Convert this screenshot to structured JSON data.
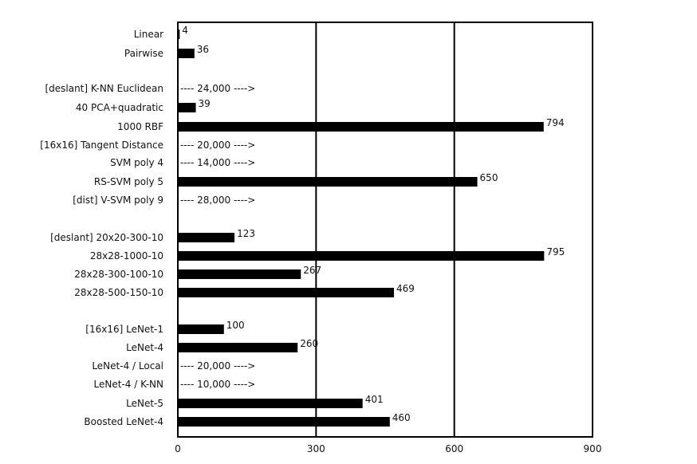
{
  "chart_data": {
    "type": "bar",
    "orientation": "horizontal",
    "xlim": [
      0,
      900
    ],
    "xticks": [
      "0",
      "300",
      "600",
      "900"
    ],
    "grid": "vertical lines at 300 and 600",
    "rows": [
      {
        "label": "Linear",
        "value": 4,
        "text": "4",
        "overflow": false
      },
      {
        "label": "Pairwise",
        "value": 36,
        "text": "36",
        "overflow": false
      },
      {
        "label": "[deslant] K-NN Euclidean",
        "value": 24000,
        "text": "---- 24,000 ---->",
        "overflow": true
      },
      {
        "label": "40 PCA+quadratic",
        "value": 39,
        "text": "39",
        "overflow": false
      },
      {
        "label": "1000 RBF",
        "value": 794,
        "text": "794",
        "overflow": false
      },
      {
        "label": "[16x16] Tangent Distance",
        "value": 20000,
        "text": "---- 20,000 ---->",
        "overflow": true
      },
      {
        "label": "SVM poly 4",
        "value": 14000,
        "text": "---- 14,000 ---->",
        "overflow": true
      },
      {
        "label": "RS-SVM poly 5",
        "value": 650,
        "text": "650",
        "overflow": false
      },
      {
        "label": "[dist] V-SVM poly 9",
        "value": 28000,
        "text": "---- 28,000 ---->",
        "overflow": true
      },
      {
        "label": "[deslant] 20x20-300-10",
        "value": 123,
        "text": "123",
        "overflow": false
      },
      {
        "label": "28x28-1000-10",
        "value": 795,
        "text": "795",
        "overflow": false
      },
      {
        "label": "28x28-300-100-10",
        "value": 267,
        "text": "267",
        "overflow": false
      },
      {
        "label": "28x28-500-150-10",
        "value": 469,
        "text": "469",
        "overflow": false
      },
      {
        "label": "[16x16] LeNet-1",
        "value": 100,
        "text": "100",
        "overflow": false
      },
      {
        "label": "LeNet-4",
        "value": 260,
        "text": "260",
        "overflow": false
      },
      {
        "label": "LeNet-4 / Local",
        "value": 20000,
        "text": "---- 20,000 ---->",
        "overflow": true
      },
      {
        "label": "LeNet-4 / K-NN",
        "value": 10000,
        "text": "---- 10,000 ---->",
        "overflow": true
      },
      {
        "label": "LeNet-5",
        "value": 401,
        "text": "401",
        "overflow": false
      },
      {
        "label": "Boosted LeNet-4",
        "value": 460,
        "text": "460",
        "overflow": false
      }
    ]
  }
}
